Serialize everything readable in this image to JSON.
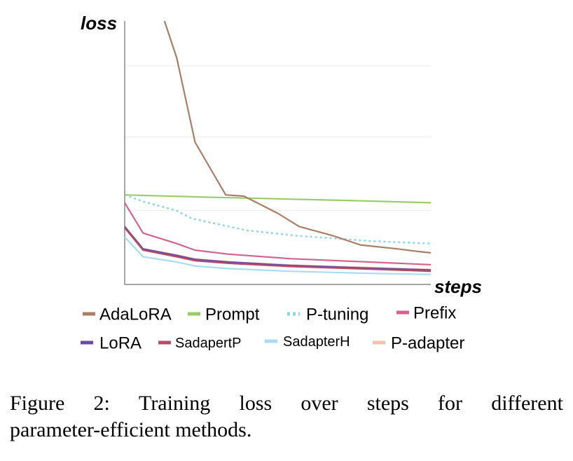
{
  "chart_data": {
    "type": "line",
    "title": "",
    "xlabel": "steps",
    "ylabel": "loss",
    "xlim": [
      0,
      10
    ],
    "ylim": [
      0,
      10
    ],
    "grid": true,
    "x": [
      0,
      0.6,
      1.7,
      3.4,
      5.4,
      8,
      10
    ],
    "series": [
      {
        "name": "AdaLoRA",
        "color": "#a97f66",
        "dash": "solid",
        "x": [
          1.3,
          1.7,
          2.3,
          3.3,
          3.9,
          5.0,
          5.7,
          6.8,
          7.7,
          8.9,
          9.6,
          10
        ],
        "values": [
          10.0,
          8.6,
          5.4,
          3.4,
          3.35,
          2.7,
          2.2,
          1.85,
          1.5,
          1.35,
          1.25,
          1.2
        ]
      },
      {
        "name": "Prompt",
        "color": "#9ccb6b",
        "dash": "solid",
        "x": [
          0,
          2.5,
          5,
          7.5,
          10
        ],
        "values": [
          3.4,
          3.32,
          3.25,
          3.18,
          3.1
        ]
      },
      {
        "name": "P-tuning",
        "color": "#8fd3ea",
        "dash": "dotted",
        "x": [
          0,
          0.6,
          1.7,
          2.2,
          3.4,
          4.0,
          5.6,
          6.8,
          8.0,
          9.0,
          10
        ],
        "values": [
          3.4,
          3.15,
          2.8,
          2.5,
          2.2,
          2.05,
          1.85,
          1.75,
          1.65,
          1.6,
          1.55
        ]
      },
      {
        "name": "Prefix",
        "color": "#d4648e",
        "dash": "solid",
        "x": [
          0,
          0.6,
          1.7,
          2.3,
          3.4,
          5.4,
          8,
          10
        ],
        "values": [
          3.1,
          1.95,
          1.55,
          1.3,
          1.15,
          0.98,
          0.85,
          0.75
        ]
      },
      {
        "name": "LoRA",
        "color": "#6c4aa5",
        "dash": "solid",
        "x": [
          0,
          0.6,
          1.7,
          2.3,
          3.4,
          5.4,
          8,
          10
        ],
        "values": [
          2.2,
          1.35,
          1.1,
          0.95,
          0.85,
          0.72,
          0.62,
          0.55
        ]
      },
      {
        "name": "SadapertP",
        "color": "#b24e65",
        "dash": "solid",
        "x": [
          0,
          0.6,
          1.7,
          2.3,
          3.4,
          5.4,
          8,
          10
        ],
        "values": [
          2.15,
          1.3,
          1.05,
          0.9,
          0.8,
          0.68,
          0.58,
          0.5
        ]
      },
      {
        "name": "SadapterH",
        "color": "#a8dcf0",
        "dash": "solid",
        "x": [
          0,
          0.6,
          1.7,
          2.3,
          3.4,
          5.4,
          8,
          10
        ],
        "values": [
          1.8,
          1.05,
          0.85,
          0.7,
          0.6,
          0.5,
          0.42,
          0.38
        ]
      },
      {
        "name": "P-adapter",
        "color": "#f2c3a8",
        "dash": "solid",
        "x": [
          0,
          0.6,
          1.7,
          2.3,
          3.4,
          5.4,
          8,
          10
        ],
        "values": [
          2.2,
          1.35,
          1.12,
          0.97,
          0.86,
          0.74,
          0.64,
          0.57
        ]
      }
    ]
  },
  "caption": {
    "line1_words": [
      "Figure",
      "2:",
      "Training",
      "loss",
      "over",
      "steps",
      "for",
      "different"
    ],
    "line2": "parameter-efficient methods."
  }
}
